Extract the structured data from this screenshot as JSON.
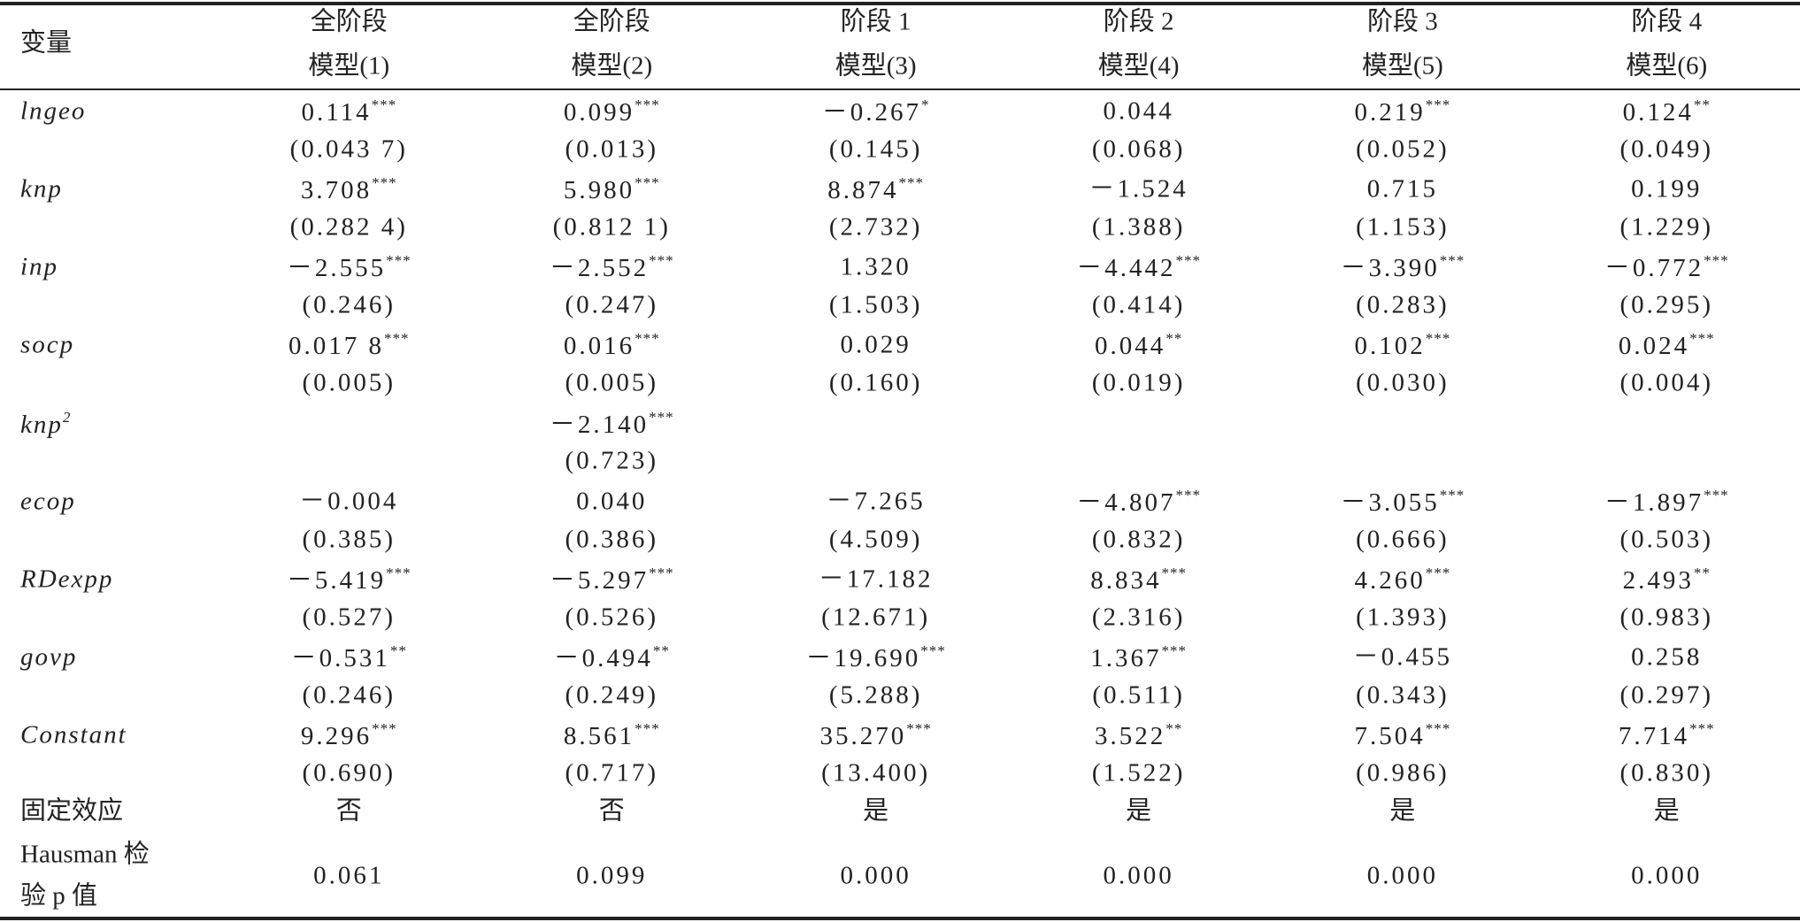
{
  "header": {
    "variable_label": "变量",
    "columns": [
      {
        "group": "全阶段",
        "model": "模型(1)"
      },
      {
        "group": "全阶段",
        "model": "模型(2)"
      },
      {
        "group": "阶段 1",
        "model": "模型(3)"
      },
      {
        "group": "阶段 2",
        "model": "模型(4)"
      },
      {
        "group": "阶段 3",
        "model": "模型(5)"
      },
      {
        "group": "阶段 4",
        "model": "模型(6)"
      }
    ]
  },
  "rows": [
    {
      "variable": "lngeo",
      "cells": [
        {
          "coef": "0.114",
          "stars": "***",
          "se": "(0.043 7)"
        },
        {
          "coef": "0.099",
          "stars": "***",
          "se": "(0.013)"
        },
        {
          "coef": "－0.267",
          "stars": "*",
          "se": "(0.145)"
        },
        {
          "coef": "0.044",
          "se": "(0.068)"
        },
        {
          "coef": "0.219",
          "stars": "***",
          "se": "(0.052)"
        },
        {
          "coef": "0.124",
          "stars": "**",
          "se": "(0.049)"
        }
      ]
    },
    {
      "variable": "knp",
      "cells": [
        {
          "coef": "3.708",
          "stars": "***",
          "se": "(0.282 4)"
        },
        {
          "coef": "5.980",
          "stars": "***",
          "se": "(0.812 1)"
        },
        {
          "coef": "8.874",
          "stars": "***",
          "se": "(2.732)"
        },
        {
          "coef": "－1.524",
          "se": "(1.388)"
        },
        {
          "coef": "0.715",
          "se": "(1.153)"
        },
        {
          "coef": "0.199",
          "se": "(1.229)"
        }
      ]
    },
    {
      "variable": "inp",
      "cells": [
        {
          "coef": "－2.555",
          "stars": "***",
          "se": "(0.246)"
        },
        {
          "coef": "－2.552",
          "stars": "***",
          "se": "(0.247)"
        },
        {
          "coef": "1.320",
          "se": "(1.503)"
        },
        {
          "coef": "－4.442",
          "stars": "***",
          "se": "(0.414)"
        },
        {
          "coef": "－3.390",
          "stars": "***",
          "se": "(0.283)"
        },
        {
          "coef": "－0.772",
          "stars": "***",
          "se": "(0.295)"
        }
      ]
    },
    {
      "variable": "socp",
      "cells": [
        {
          "coef": "0.017 8",
          "stars": "***",
          "se": "(0.005)"
        },
        {
          "coef": "0.016",
          "stars": "***",
          "se": "(0.005)"
        },
        {
          "coef": "0.029",
          "se": "(0.160)"
        },
        {
          "coef": "0.044",
          "stars": "**",
          "se": "(0.019)"
        },
        {
          "coef": "0.102",
          "stars": "***",
          "se": "(0.030)"
        },
        {
          "coef": "0.024",
          "stars": "***",
          "se": "(0.004)"
        }
      ]
    },
    {
      "variable": "knp",
      "superscript": "2",
      "cells": [
        null,
        {
          "coef": "－2.140",
          "stars": "***",
          "se": "(0.723)"
        },
        null,
        null,
        null,
        null
      ]
    },
    {
      "variable": "ecop",
      "cells": [
        {
          "coef": "－0.004",
          "se": "(0.385)"
        },
        {
          "coef": "0.040",
          "se": "(0.386)"
        },
        {
          "coef": "－7.265",
          "se": "(4.509)"
        },
        {
          "coef": "－4.807",
          "stars": "***",
          "se": "(0.832)"
        },
        {
          "coef": "－3.055",
          "stars": "***",
          "se": "(0.666)"
        },
        {
          "coef": "－1.897",
          "stars": "***",
          "se": "(0.503)"
        }
      ]
    },
    {
      "variable": "RDexpp",
      "cells": [
        {
          "coef": "－5.419",
          "stars": "***",
          "se": "(0.527)"
        },
        {
          "coef": "－5.297",
          "stars": "***",
          "se": "(0.526)"
        },
        {
          "coef": "－17.182",
          "se": "(12.671)"
        },
        {
          "coef": "8.834",
          "stars": "***",
          "se": "(2.316)"
        },
        {
          "coef": "4.260",
          "stars": "***",
          "se": "(1.393)"
        },
        {
          "coef": "2.493",
          "stars": "**",
          "se": "(0.983)"
        }
      ]
    },
    {
      "variable": "govp",
      "cells": [
        {
          "coef": "－0.531",
          "stars": "**",
          "se": "(0.246)"
        },
        {
          "coef": "－0.494",
          "stars": "**",
          "se": "(0.249)"
        },
        {
          "coef": "－19.690",
          "stars": "***",
          "se": "(5.288)"
        },
        {
          "coef": "1.367",
          "stars": "***",
          "se": "(0.511)"
        },
        {
          "coef": "－0.455",
          "se": "(0.343)"
        },
        {
          "coef": "0.258",
          "se": "(0.297)"
        }
      ]
    },
    {
      "variable": "Constant",
      "cells": [
        {
          "coef": "9.296",
          "stars": "***",
          "se": "(0.690)"
        },
        {
          "coef": "8.561",
          "stars": "***",
          "se": "(0.717)"
        },
        {
          "coef": "35.270",
          "stars": "***",
          "se": "(13.400)"
        },
        {
          "coef": "3.522",
          "stars": "**",
          "se": "(1.522)"
        },
        {
          "coef": "7.504",
          "stars": "***",
          "se": "(0.986)"
        },
        {
          "coef": "7.714",
          "stars": "***",
          "se": "(0.830)"
        }
      ]
    }
  ],
  "fixed_effects": {
    "label": "固定效应",
    "values": [
      "否",
      "否",
      "是",
      "是",
      "是",
      "是"
    ]
  },
  "hausman": {
    "label_lines": [
      "Hausman 检",
      "验 p 值"
    ],
    "values": [
      "0.061",
      "0.099",
      "0.000",
      "0.000",
      "0.000",
      "0.000"
    ]
  }
}
